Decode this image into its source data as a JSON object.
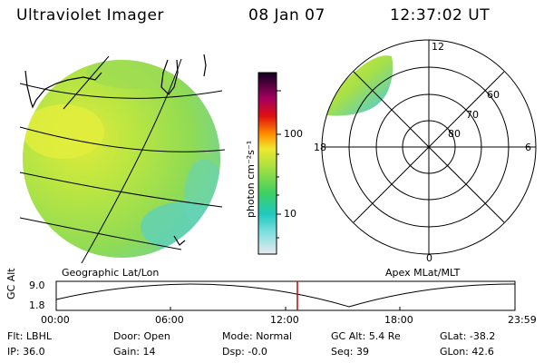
{
  "header": {
    "instrument": "Ultraviolet Imager",
    "date": "08 Jan 07",
    "time": "12:37:02 UT"
  },
  "colorbar": {
    "unit_label": "photon cm⁻²s⁻¹",
    "tick_labels": [
      "100",
      "10"
    ]
  },
  "left_panel": {
    "caption": "Geographic Lat/Lon"
  },
  "right_panel": {
    "caption": "Apex MLat/MLT",
    "mlt_labels": {
      "top": "12",
      "left": "18",
      "right": "6",
      "bottom": "0"
    },
    "lat_labels": [
      "60",
      "70",
      "80"
    ]
  },
  "timeline": {
    "ylabel": "GC Alt",
    "y_ticks": [
      "9.0",
      "1.8"
    ],
    "x_ticks": [
      "00:00",
      "06:00",
      "12:00",
      "18:00",
      "23:59"
    ],
    "current_marker_hours": 12.62
  },
  "status": {
    "row1": [
      {
        "label": "Flt:",
        "value": "LBHL"
      },
      {
        "label": "Door:",
        "value": "Open"
      },
      {
        "label": "Mode:",
        "value": "Normal"
      },
      {
        "label": "GC Alt:",
        "value": "5.4 Re"
      },
      {
        "label": "GLat:",
        "value": "-38.2"
      }
    ],
    "row2": [
      {
        "label": "IP:",
        "value": "36.0"
      },
      {
        "label": "Gain:",
        "value": "14"
      },
      {
        "label": "Dsp:",
        "value": "-0.0"
      },
      {
        "label": "Seq:",
        "value": "39"
      },
      {
        "label": "GLon:",
        "value": "42.6"
      }
    ]
  },
  "colors": {
    "image_base": "#9be04a",
    "image_bright": "#d8ec3a",
    "image_dim": "#5ed0c8",
    "marker": "#cc0000"
  }
}
